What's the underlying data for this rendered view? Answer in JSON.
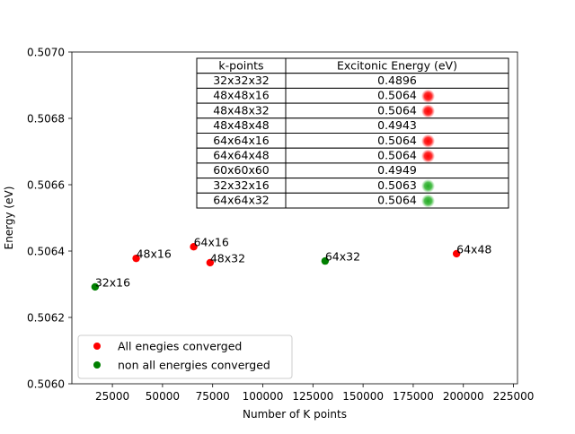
{
  "chart_data": {
    "type": "scatter",
    "title": "",
    "xlabel": "Number of K points",
    "ylabel": "Energy (eV)",
    "xlim": [
      4800,
      227000
    ],
    "ylim": [
      0.506,
      0.507
    ],
    "grid": false,
    "x_ticks": [
      25000,
      50000,
      75000,
      100000,
      125000,
      150000,
      175000,
      200000,
      225000
    ],
    "x_tick_labels": [
      "25000",
      "50000",
      "75000",
      "100000",
      "125000",
      "150000",
      "175000",
      "200000",
      "225000"
    ],
    "y_ticks": [
      0.506,
      0.5062,
      0.5064,
      0.5066,
      0.5068,
      0.507
    ],
    "y_tick_labels": [
      "0.5060",
      "0.5062",
      "0.5064",
      "0.5066",
      "0.5068",
      "0.5070"
    ],
    "series": [
      {
        "name": "All enegies converged",
        "color": "#ff0000",
        "points": [
          {
            "label": "48x16",
            "x": 36864,
            "y": 0.506378
          },
          {
            "label": "64x16",
            "x": 65536,
            "y": 0.506413
          },
          {
            "label": "48x32",
            "x": 73728,
            "y": 0.506365
          },
          {
            "label": "64x48",
            "x": 196608,
            "y": 0.506392
          }
        ]
      },
      {
        "name": "non all energies converged",
        "color": "#008000",
        "points": [
          {
            "label": "32x16",
            "x": 16384,
            "y": 0.506292
          },
          {
            "label": "64x32",
            "x": 131072,
            "y": 0.50637
          }
        ]
      }
    ],
    "legend": {
      "placement": "lower-left",
      "entries": [
        {
          "label": "All enegies converged",
          "color": "#ff0000"
        },
        {
          "label": "non all energies converged",
          "color": "#008000"
        }
      ]
    },
    "table": {
      "headers": [
        "k-points",
        "Excitonic Energy (eV)"
      ],
      "rows": [
        {
          "kpoints": "32x32x32",
          "energy": "0.4896",
          "marker": ""
        },
        {
          "kpoints": "48x48x16",
          "energy": "0.5064",
          "marker": "red"
        },
        {
          "kpoints": "48x48x32",
          "energy": "0.5064",
          "marker": "red"
        },
        {
          "kpoints": "48x48x48",
          "energy": "0.4943",
          "marker": ""
        },
        {
          "kpoints": "64x64x16",
          "energy": "0.5064",
          "marker": "red"
        },
        {
          "kpoints": "64x64x48",
          "energy": "0.5064",
          "marker": "red"
        },
        {
          "kpoints": "60x60x60",
          "energy": "0.4949",
          "marker": ""
        },
        {
          "kpoints": "32x32x16",
          "energy": "0.5063",
          "marker": "green"
        },
        {
          "kpoints": "64x64x32",
          "energy": "0.5064",
          "marker": "green"
        }
      ],
      "marker_colors": {
        "red": "#ff0000",
        "green": "#2db52d"
      }
    }
  }
}
